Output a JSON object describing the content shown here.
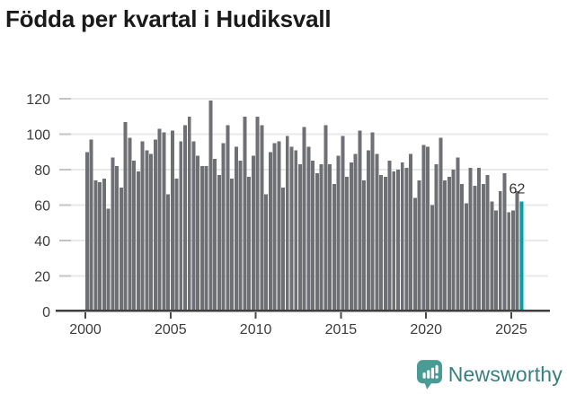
{
  "header": {
    "title": "Födda per kvartal i Hudiksvall"
  },
  "chart_data": {
    "type": "bar",
    "title": "Födda per kvartal i Hudiksvall",
    "frequency": "quarterly",
    "x_start": "2000 Q1",
    "x_end": "2025 Q3",
    "x_tick_labels": [
      "2000",
      "2005",
      "2010",
      "2015",
      "2020",
      "2025"
    ],
    "y_ticks": [
      0,
      20,
      40,
      60,
      80,
      100,
      120
    ],
    "y_tick_labels": [
      "0",
      "20",
      "40",
      "60",
      "80",
      "100",
      "120"
    ],
    "ylim": [
      0,
      125
    ],
    "grid": true,
    "legend": false,
    "bar_color": "#6f6f76",
    "highlight_color": "#00a0a5",
    "series": [
      {
        "name": "Födda",
        "values": [
          90,
          97,
          74,
          73,
          75,
          58,
          87,
          82,
          70,
          107,
          98,
          85,
          79,
          96,
          91,
          89,
          97,
          103,
          101,
          66,
          102,
          75,
          96,
          105,
          110,
          96,
          88,
          82,
          82,
          119,
          86,
          77,
          95,
          105,
          75,
          93,
          85,
          110,
          76,
          88,
          110,
          105,
          66,
          90,
          95,
          96,
          70,
          99,
          93,
          91,
          83,
          104,
          93,
          85,
          78,
          83,
          105,
          83,
          72,
          88,
          99,
          76,
          84,
          89,
          102,
          74,
          91,
          101,
          89,
          77,
          76,
          85,
          79,
          80,
          84,
          81,
          89,
          64,
          74,
          94,
          93,
          60,
          83,
          98,
          74,
          76,
          80,
          87,
          72,
          61,
          81,
          71,
          81,
          72,
          77,
          62,
          57,
          68,
          78,
          56,
          57,
          68,
          62
        ]
      }
    ],
    "highlight": {
      "index": 102,
      "label": "62"
    }
  },
  "footer": {
    "brand": "Newsworthy",
    "brand_text_color": "#38807e",
    "brand_icon_color": "#4a9a96"
  }
}
